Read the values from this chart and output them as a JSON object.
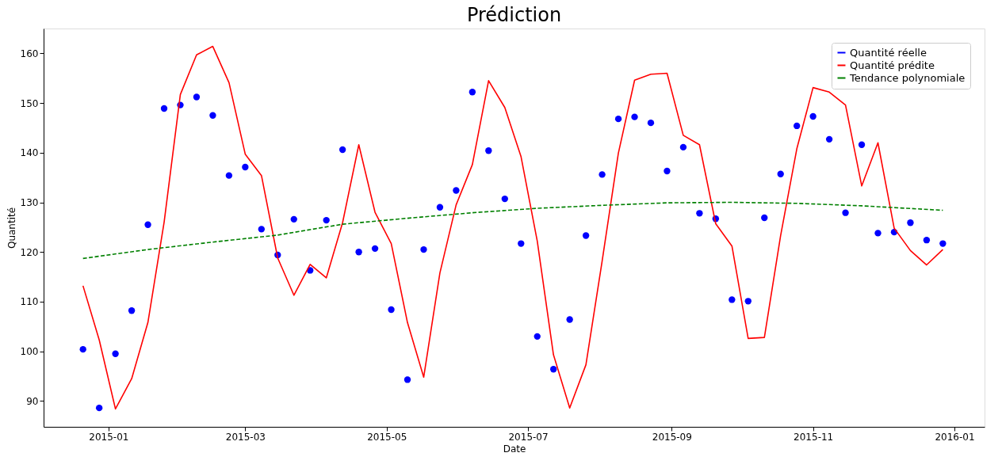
{
  "chart_data": {
    "type": "scatter",
    "title": "Prédiction",
    "xlabel": "Date",
    "ylabel": "Quantité",
    "x": [
      "2014-12-21",
      "2014-12-28",
      "2015-01-04",
      "2015-01-11",
      "2015-01-18",
      "2015-01-25",
      "2015-02-01",
      "2015-02-08",
      "2015-02-15",
      "2015-02-22",
      "2015-03-01",
      "2015-03-08",
      "2015-03-15",
      "2015-03-22",
      "2015-03-29",
      "2015-04-05",
      "2015-04-12",
      "2015-04-19",
      "2015-04-26",
      "2015-05-03",
      "2015-05-10",
      "2015-05-17",
      "2015-05-24",
      "2015-05-31",
      "2015-06-07",
      "2015-06-14",
      "2015-06-21",
      "2015-06-28",
      "2015-07-05",
      "2015-07-12",
      "2015-07-19",
      "2015-07-26",
      "2015-08-02",
      "2015-08-09",
      "2015-08-16",
      "2015-08-23",
      "2015-08-30",
      "2015-09-06",
      "2015-09-13",
      "2015-09-20",
      "2015-09-27",
      "2015-10-04",
      "2015-10-11",
      "2015-10-18",
      "2015-10-25",
      "2015-11-01",
      "2015-11-08",
      "2015-11-15",
      "2015-11-22",
      "2015-11-29",
      "2015-12-06",
      "2015-12-13",
      "2015-12-20",
      "2015-12-27"
    ],
    "series": [
      {
        "name": "Quantité réelle",
        "color": "#0000ff",
        "marker": "circle",
        "values": [
          100.4,
          88.6,
          99.5,
          108.2,
          125.5,
          148.9,
          149.6,
          151.2,
          147.5,
          135.4,
          137.1,
          124.6,
          119.4,
          126.6,
          116.3,
          126.4,
          140.6,
          120.0,
          120.7,
          108.4,
          94.3,
          120.5,
          129.0,
          132.4,
          152.2,
          140.4,
          130.7,
          121.7,
          103.0,
          96.4,
          106.4,
          123.3,
          135.6,
          146.8,
          147.2,
          146.0,
          136.3,
          141.1,
          127.8,
          126.7,
          110.4,
          110.1,
          126.9,
          135.7,
          145.4,
          147.3,
          142.7,
          127.9,
          141.6,
          123.8,
          124.0,
          125.9,
          122.4,
          121.7
        ]
      },
      {
        "name": "Quantité prédite",
        "type": "line",
        "color": "#ff0000",
        "line_style": "solid",
        "values": [
          113.2,
          102.3,
          88.4,
          94.5,
          105.8,
          126.0,
          151.7,
          159.7,
          161.4,
          154.1,
          139.7,
          135.4,
          118.8,
          111.3,
          117.5,
          114.8,
          125.9,
          141.6,
          128.0,
          121.7,
          105.8,
          94.8,
          115.8,
          129.5,
          137.6,
          154.5,
          149.1,
          139.2,
          122.2,
          99.3,
          88.6,
          97.3,
          118.2,
          139.9,
          154.6,
          155.8,
          156.0,
          143.5,
          141.6,
          125.7,
          121.2,
          102.6,
          102.8,
          123.3,
          140.8,
          153.1,
          152.2,
          149.6,
          133.3,
          142.0,
          124.8,
          120.3,
          117.4,
          120.5
        ]
      },
      {
        "name": "Tendance polynomiale",
        "type": "line",
        "color": "#008000",
        "line_style": "dashed",
        "x": [
          "2014-12-21",
          "2015-01-18",
          "2015-02-15",
          "2015-03-15",
          "2015-04-12",
          "2015-05-10",
          "2015-06-07",
          "2015-07-05",
          "2015-08-02",
          "2015-08-30",
          "2015-09-27",
          "2015-10-25",
          "2015-11-22",
          "2015-12-27"
        ],
        "values": [
          118.7,
          120.5,
          122.0,
          123.4,
          125.6,
          126.8,
          127.9,
          128.8,
          129.4,
          129.9,
          130.0,
          129.8,
          129.3,
          128.4
        ]
      }
    ],
    "xlim": [
      "2014-12-04",
      "2016-01-14"
    ],
    "xticks": [
      {
        "value": "2015-01-01",
        "label": "2015-01"
      },
      {
        "value": "2015-03-01",
        "label": "2015-03"
      },
      {
        "value": "2015-05-01",
        "label": "2015-05"
      },
      {
        "value": "2015-07-01",
        "label": "2015-07"
      },
      {
        "value": "2015-09-01",
        "label": "2015-09"
      },
      {
        "value": "2015-11-01",
        "label": "2015-11"
      },
      {
        "value": "2016-01-01",
        "label": "2016-01"
      }
    ],
    "ylim": [
      84.8,
      165
    ],
    "yticks": [
      90,
      100,
      110,
      120,
      130,
      140,
      150,
      160
    ],
    "grid": false,
    "legend": "top right"
  }
}
